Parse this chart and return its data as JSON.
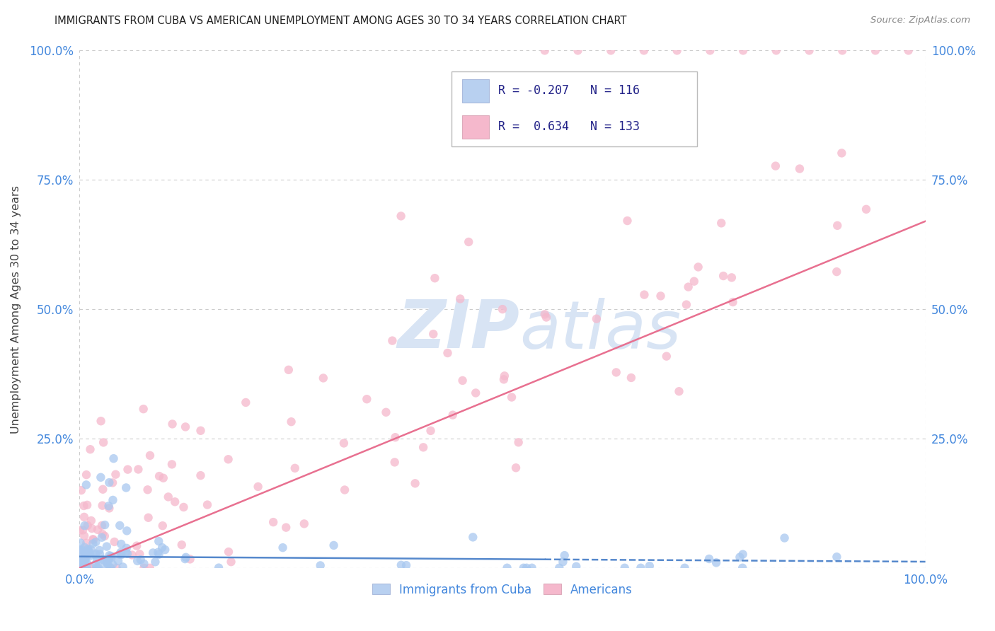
{
  "title": "IMMIGRANTS FROM CUBA VS AMERICAN UNEMPLOYMENT AMONG AGES 30 TO 34 YEARS CORRELATION CHART",
  "source": "Source: ZipAtlas.com",
  "ylabel": "Unemployment Among Ages 30 to 34 years",
  "legend_labels": [
    "Immigrants from Cuba",
    "Americans"
  ],
  "legend_R_cuba": "R = -0.207",
  "legend_N_cuba": "N = 116",
  "legend_R_americans": "R =  0.634",
  "legend_N_americans": "N = 133",
  "color_cuba": "#a8c8f0",
  "color_cuba_fill": "#b8d0f0",
  "color_americans": "#f5b8cc",
  "color_americans_fill": "#f5b8cc",
  "color_cuba_line": "#5588cc",
  "color_americans_line": "#e87090",
  "color_title": "#222222",
  "color_source": "#888888",
  "color_axis_labels": "#4488dd",
  "color_ylabel": "#444444",
  "watermark_zip": "ZIP",
  "watermark_atlas": "atlas",
  "watermark_color": "#d8e4f4",
  "background_color": "#ffffff",
  "grid_color": "#cccccc",
  "xlim": [
    0.0,
    1.0
  ],
  "ylim": [
    0.0,
    1.0
  ],
  "cuba_line_slope": -0.01,
  "cuba_line_intercept": 0.022,
  "amer_line_slope": 0.67,
  "amer_line_intercept": 0.0
}
